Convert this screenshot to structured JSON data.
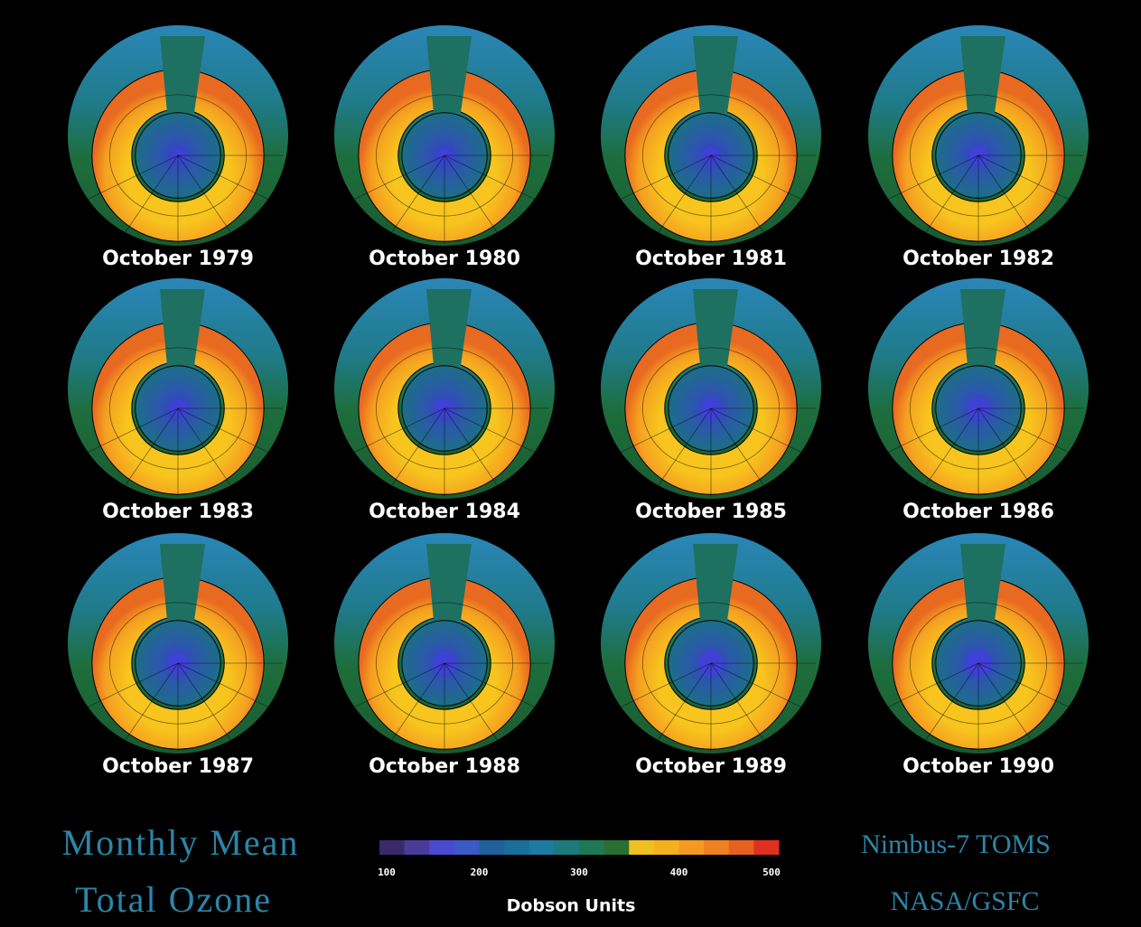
{
  "panels": [
    {
      "label": "October 1979"
    },
    {
      "label": "October 1980"
    },
    {
      "label": "October 1981"
    },
    {
      "label": "October 1982"
    },
    {
      "label": "October 1983"
    },
    {
      "label": "October 1984"
    },
    {
      "label": "October 1985"
    },
    {
      "label": "October 1986"
    },
    {
      "label": "October 1987"
    },
    {
      "label": "October 1988"
    },
    {
      "label": "October 1989"
    },
    {
      "label": "October 1990"
    }
  ],
  "legend": {
    "title_line1": "Monthly Mean",
    "title_line2": "Total Ozone",
    "colorbar": {
      "lim": [
        100,
        500
      ],
      "ticks": [
        100,
        200,
        300,
        400,
        500
      ],
      "unit_label": "Dobson Units",
      "colors": [
        "#3a2a6a",
        "#4a3a9a",
        "#4a4ad0",
        "#3a5ac8",
        "#1f5f9a",
        "#1a6e9a",
        "#1d7aa0",
        "#1c7a7a",
        "#1e7a55",
        "#2a6e30",
        "#f0c020",
        "#f5b020",
        "#f59a20",
        "#f08020",
        "#e86020",
        "#e03020"
      ]
    }
  },
  "credits": {
    "line1": "Nimbus-7 TOMS",
    "line2": "NASA/GSFC"
  }
}
